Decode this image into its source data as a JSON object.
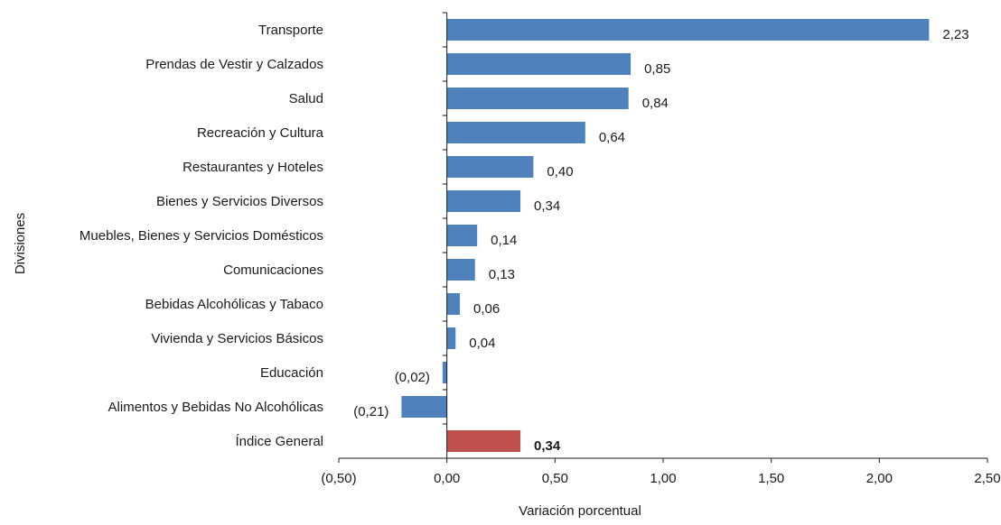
{
  "chart_data": {
    "type": "bar",
    "orientation": "horizontal",
    "title": "",
    "xlabel": "Variación porcentual",
    "ylabel": "Divisiones",
    "xlim": [
      -0.5,
      2.5
    ],
    "xticks": [
      -0.5,
      0,
      0.5,
      1.0,
      1.5,
      2.0,
      2.5
    ],
    "xtick_labels": [
      "(0,50)",
      "0,00",
      "0,50",
      "1,00",
      "1,50",
      "2,00",
      "2,50"
    ],
    "grid": false,
    "legend": "none",
    "categories": [
      "Transporte",
      "Prendas de Vestir y Calzados",
      "Salud",
      "Recreación y Cultura",
      "Restaurantes  y Hoteles",
      "Bienes y Servicios Diversos",
      "Muebles, Bienes y Servicios Domésticos",
      "Comunicaciones",
      "Bebidas Alcohólicas y Tabaco",
      "Vivienda y Servicios Básicos",
      "Educación",
      "Alimentos y Bebidas No Alcohólicas",
      "Índice General"
    ],
    "values": [
      2.23,
      0.85,
      0.84,
      0.64,
      0.4,
      0.34,
      0.14,
      0.13,
      0.06,
      0.04,
      -0.02,
      -0.21,
      0.34
    ],
    "value_labels": [
      "2,23",
      "0,85",
      "0,84",
      "0,64",
      "0,40",
      "0,34",
      "0,14",
      "0,13",
      "0,06",
      "0,04",
      "(0,02)",
      "(0,21)",
      "0,34"
    ],
    "highlight_index": 12,
    "colors": {
      "bar": "#4f81bd",
      "highlight": "#c0504d",
      "axis": "#1a1a1a"
    }
  }
}
